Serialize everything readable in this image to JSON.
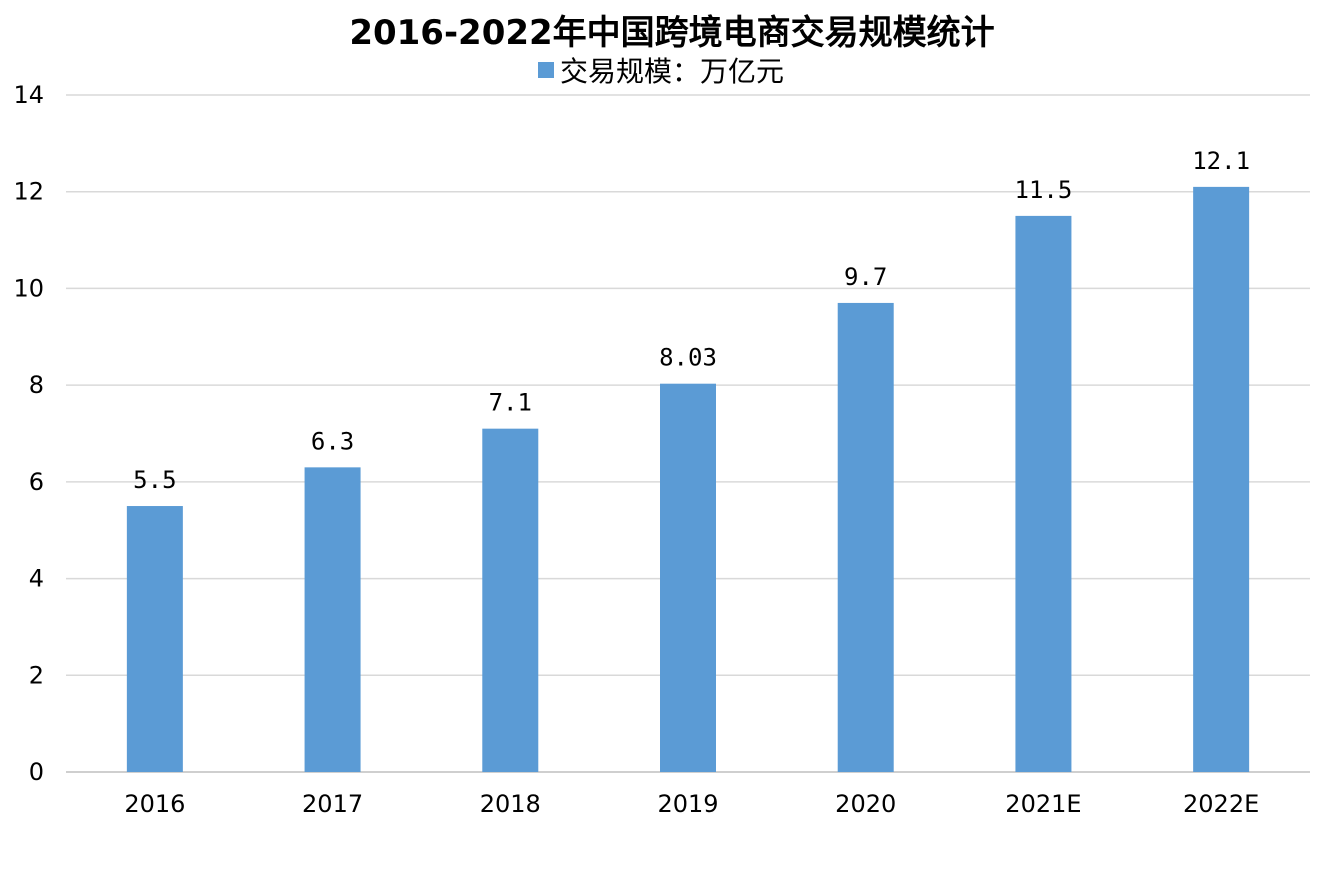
{
  "chart_data": {
    "type": "bar",
    "title": "2016-2022年中国跨境电商交易规模统计",
    "categories": [
      "2016",
      "2017",
      "2018",
      "2019",
      "2020",
      "2021E",
      "2022E"
    ],
    "series": [
      {
        "name": "交易规模：万亿元",
        "values": [
          5.5,
          6.3,
          7.1,
          8.03,
          9.7,
          11.5,
          12.1
        ],
        "labels": [
          "5.5",
          "6.3",
          "7.1",
          "8.03",
          "9.7",
          "11.5",
          "12.1"
        ],
        "color": "#5b9bd5"
      }
    ],
    "ylim": [
      0,
      14
    ],
    "yticks": [
      "0",
      "2",
      "4",
      "6",
      "8",
      "10",
      "12",
      "14"
    ],
    "xlabel": "",
    "ylabel": "",
    "grid": true,
    "legend_position": "top-center"
  }
}
